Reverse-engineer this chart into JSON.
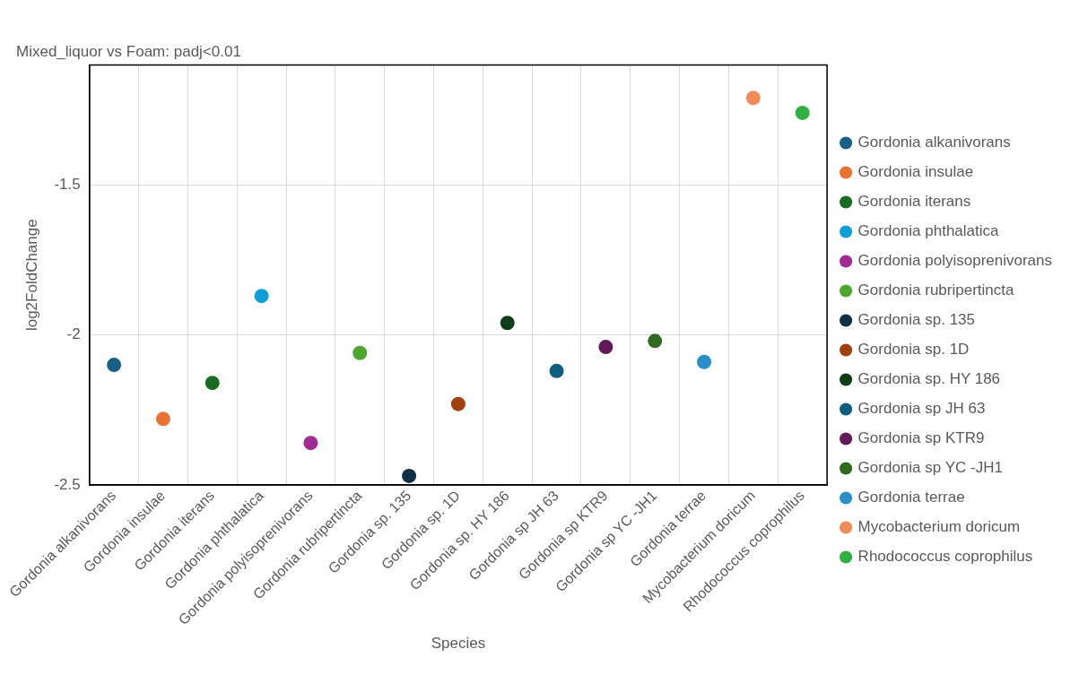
{
  "chart_data": {
    "type": "scatter",
    "title": "Mixed_liquor vs Foam: padj<0.01",
    "xlabel": "Species",
    "ylabel": "log2FoldChange",
    "categories": [
      "Gordonia alkanivorans",
      "Gordonia insulae",
      "Gordonia iterans",
      "Gordonia phthalatica",
      "Gordonia polyisoprenivorans",
      "Gordonia rubripertincta",
      "Gordonia sp. 135",
      "Gordonia sp. 1D",
      "Gordonia sp. HY 186",
      "Gordonia sp JH 63",
      "Gordonia sp KTR9",
      "Gordonia sp YC -JH1",
      "Gordonia terrae",
      "Mycobacterium doricum",
      "Rhodococcus coprophilus"
    ],
    "series": [
      {
        "name": "Gordonia alkanivorans",
        "color": "#1a5f85",
        "x": [
          "Gordonia alkanivorans"
        ],
        "values": [
          -2.1
        ]
      },
      {
        "name": "Gordonia insulae",
        "color": "#e97132",
        "x": [
          "Gordonia insulae"
        ],
        "values": [
          -2.28
        ]
      },
      {
        "name": "Gordonia iterans",
        "color": "#196b24",
        "x": [
          "Gordonia iterans"
        ],
        "values": [
          -2.16
        ]
      },
      {
        "name": "Gordonia phthalatica",
        "color": "#0f9ed5",
        "x": [
          "Gordonia phthalatica"
        ],
        "values": [
          -1.87
        ]
      },
      {
        "name": "Gordonia polyisoprenivorans",
        "color": "#a02b93",
        "x": [
          "Gordonia polyisoprenivorans"
        ],
        "values": [
          -2.36
        ]
      },
      {
        "name": "Gordonia rubripertincta",
        "color": "#4ea72e",
        "x": [
          "Gordonia rubripertincta"
        ],
        "values": [
          -2.06
        ]
      },
      {
        "name": "Gordonia sp. 135",
        "color": "#0e2f44",
        "x": [
          "Gordonia sp. 135"
        ],
        "values": [
          -2.47
        ]
      },
      {
        "name": "Gordonia sp. 1D",
        "color": "#a0400f",
        "x": [
          "Gordonia sp. 1D"
        ],
        "values": [
          -2.23
        ]
      },
      {
        "name": "Gordonia sp. HY 186",
        "color": "#0e3d18",
        "x": [
          "Gordonia sp. HY 186"
        ],
        "values": [
          -1.96
        ]
      },
      {
        "name": "Gordonia sp JH 63",
        "color": "#0f5e80",
        "x": [
          "Gordonia sp JH 63"
        ],
        "values": [
          -2.12
        ]
      },
      {
        "name": "Gordonia sp KTR9",
        "color": "#601a58",
        "x": [
          "Gordonia sp KTR9"
        ],
        "values": [
          -2.04
        ]
      },
      {
        "name": "Gordonia sp YC -JH1",
        "color": "#2f6a1e",
        "x": [
          "Gordonia sp YC -JH1"
        ],
        "values": [
          -2.02
        ]
      },
      {
        "name": "Gordonia terrae",
        "color": "#2a8fc8",
        "x": [
          "Gordonia terrae"
        ],
        "values": [
          -2.09
        ]
      },
      {
        "name": "Mycobacterium doricum",
        "color": "#f08c5a",
        "x": [
          "Mycobacterium doricum"
        ],
        "values": [
          -1.21
        ]
      },
      {
        "name": "Rhodococcus coprophilus",
        "color": "#2fb041",
        "x": [
          "Rhodococcus coprophilus"
        ],
        "values": [
          -1.26
        ]
      }
    ],
    "ylim": [
      -2.5,
      -1.1
    ],
    "yticks": [
      -2.5,
      -2,
      -1.5
    ],
    "grid": true,
    "legend": "right",
    "marker": "circle"
  }
}
